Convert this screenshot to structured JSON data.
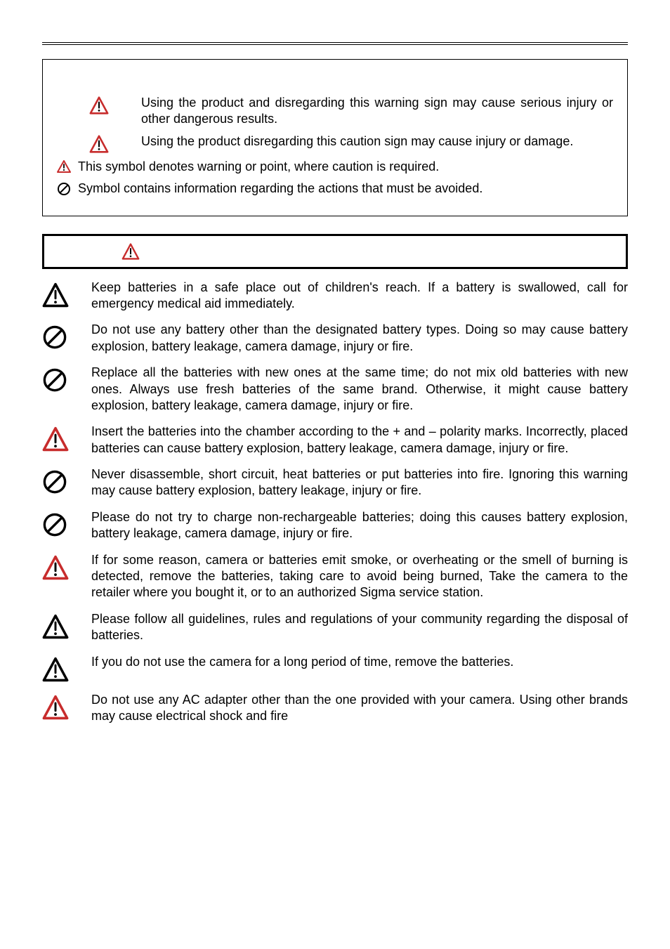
{
  "colors": {
    "warn_red": "#c72c2c",
    "black": "#000000",
    "white": "#ffffff"
  },
  "definitions": {
    "warning_def": "Using the product and disregarding this warning sign may cause serious injury or other dangerous results.",
    "caution_def": "Using the product disregarding this caution sign may cause injury or damage.",
    "triangle_note": "This symbol denotes warning or point, where caution is required.",
    "prohibit_note": "Symbol contains information regarding the actions that must be avoided."
  },
  "warnings": [
    {
      "icon": "tri_black",
      "text": "Keep batteries in a safe place out of children's reach. If a battery is swallowed, call for emergency medical aid immediately."
    },
    {
      "icon": "prohibit",
      "text": "Do not use any battery other than the designated battery types. Doing so may cause battery explosion, battery leakage, camera damage, injury or fire."
    },
    {
      "icon": "prohibit",
      "text": "Replace all the batteries with new ones at the same time; do not mix old batteries with new ones. Always use fresh batteries of the same brand. Otherwise, it might cause battery explosion, battery leakage, camera damage, injury or fire."
    },
    {
      "icon": "tri_red",
      "text": "Insert the batteries into the chamber according to the + and – polarity marks. Incorrectly, placed batteries can cause battery explosion, battery leakage, camera damage, injury or fire."
    },
    {
      "icon": "prohibit",
      "text": "Never disassemble, short circuit, heat batteries or put batteries into fire. Ignoring this warning may cause battery explosion, battery leakage, injury or fire."
    },
    {
      "icon": "prohibit",
      "text": "Please do not try to charge non-rechargeable batteries; doing this causes battery explosion, battery leakage, camera damage, injury or fire."
    },
    {
      "icon": "tri_red",
      "text": "If for some reason, camera or batteries emit smoke, or overheating or the smell of burning is detected, remove the batteries, taking care to avoid being burned, Take the camera to the retailer where you bought it, or to an authorized Sigma service station."
    },
    {
      "icon": "tri_black",
      "text": "Please follow all guidelines, rules and regulations of your community regarding the disposal of batteries."
    },
    {
      "icon": "tri_black",
      "text": "If you do not use the camera for a long period of time, remove the batteries."
    },
    {
      "icon": "tri_red_b",
      "text": "Do not use any AC adapter other than the one provided with your camera. Using other brands may cause electrical shock and fire"
    }
  ]
}
